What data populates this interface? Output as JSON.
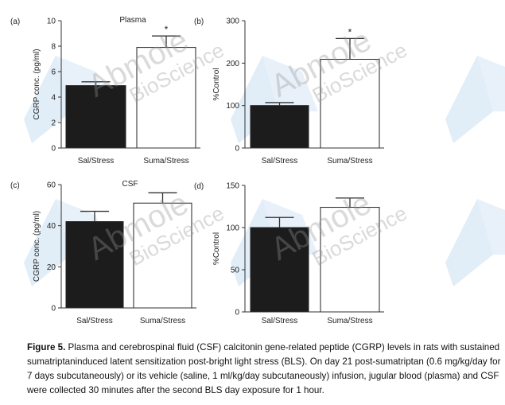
{
  "chart_data": [
    {
      "type": "bar",
      "panel": "(a)",
      "title": "Plasma",
      "ylabel": "CGRP conc. (pg/ml)",
      "xlabel": "",
      "categories": [
        "Sal/Stress",
        "Suma/Stress"
      ],
      "values": [
        4.9,
        7.9
      ],
      "errors": [
        0.3,
        0.9
      ],
      "significance": [
        "",
        "*"
      ],
      "ylim": [
        0,
        10
      ],
      "yticks": [
        0,
        2,
        4,
        6,
        8,
        10
      ],
      "bar_colors": [
        "#1c1c1c",
        "#ffffff"
      ]
    },
    {
      "type": "bar",
      "panel": "(b)",
      "title": "",
      "ylabel": "%Control",
      "xlabel": "",
      "categories": [
        "Sal/Stress",
        "Suma/Stress"
      ],
      "values": [
        100,
        209
      ],
      "errors": [
        7,
        49
      ],
      "significance": [
        "",
        "*"
      ],
      "ylim": [
        0,
        300
      ],
      "yticks": [
        0,
        100,
        200,
        300
      ],
      "bar_colors": [
        "#1c1c1c",
        "#ffffff"
      ]
    },
    {
      "type": "bar",
      "panel": "(c)",
      "title": "CSF",
      "ylabel": "CGRP conc. (pg/ml)",
      "xlabel": "",
      "categories": [
        "Sal/Stress",
        "Suma/Stress"
      ],
      "values": [
        42,
        51
      ],
      "errors": [
        5,
        5
      ],
      "significance": [
        "",
        ""
      ],
      "ylim": [
        0,
        60
      ],
      "yticks": [
        0,
        20,
        40,
        60
      ],
      "bar_colors": [
        "#1c1c1c",
        "#ffffff"
      ]
    },
    {
      "type": "bar",
      "panel": "(d)",
      "title": "",
      "ylabel": "%Control",
      "xlabel": "",
      "categories": [
        "Sal/Stress",
        "Suma/Stress"
      ],
      "values": [
        100,
        124
      ],
      "errors": [
        12,
        11
      ],
      "significance": [
        "",
        ""
      ],
      "ylim": [
        0,
        150
      ],
      "yticks": [
        0,
        50,
        100,
        150
      ],
      "bar_colors": [
        "#1c1c1c",
        "#ffffff"
      ]
    }
  ],
  "caption": {
    "label": "Figure 5.",
    "text": " Plasma and cerebrospinal fluid (CSF) calcitonin gene-related peptide (CGRP) levels in rats with sustained sumatriptaninduced latent sensitization post-bright light stress (BLS). On day 21 post-sumatriptan (0.6 mg/kg/day for 7 days subcutaneously) or its vehicle (saline, 1 ml/kg/day subcutaneously) infusion, jugular blood (plasma) and CSF were collected 30 minutes after the second BLS day exposure for 1 hour."
  },
  "watermark": {
    "line1": "Abmole",
    "line2": "BioScience",
    "color": "#5b9bd5"
  }
}
